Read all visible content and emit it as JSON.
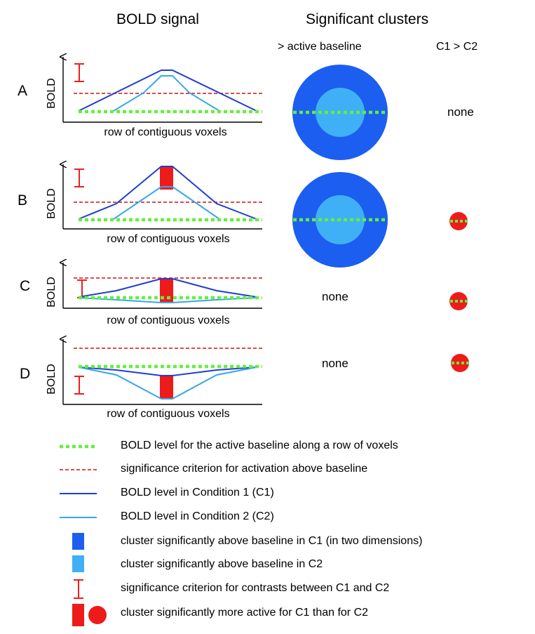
{
  "headers": {
    "bold_signal": "BOLD signal",
    "significant_clusters": "Significant clusters",
    "active_baseline": "> active baseline",
    "c1_gt_c2": "C1 > C2"
  },
  "panels": [
    {
      "label": "A",
      "ylabel": "BOLD",
      "xlabel": "row of contiguous voxels",
      "active_baseline": "",
      "c1_gt_c2": "none"
    },
    {
      "label": "B",
      "ylabel": "BOLD",
      "xlabel": "row of contiguous voxels",
      "active_baseline": "",
      "c1_gt_c2": ""
    },
    {
      "label": "C",
      "ylabel": "BOLD",
      "xlabel": "row of contiguous voxels",
      "active_baseline": "none",
      "c1_gt_c2": ""
    },
    {
      "label": "D",
      "ylabel": "BOLD",
      "xlabel": "row of contiguous voxels",
      "active_baseline": "none",
      "c1_gt_c2": ""
    }
  ],
  "legend": [
    {
      "text": "BOLD level for the active baseline along a row of voxels"
    },
    {
      "text": "significance criterion for activation above baseline"
    },
    {
      "text": "BOLD level in Condition 1 (C1)"
    },
    {
      "text": "BOLD level in Condition 2 (C2)"
    },
    {
      "text": "cluster significantly above baseline in C1 (in two dimensions)"
    },
    {
      "text": "cluster significantly above baseline in C2"
    },
    {
      "text": "significance criterion for contrasts between C1 and C2"
    },
    {
      "text": "cluster significantly more active for C1 than for C2"
    }
  ],
  "colors": {
    "c1": "#1f3fd0",
    "c2": "#3aa6ea",
    "cluster_c1": "#1c5ef0",
    "cluster_c2": "#3fb0f5",
    "baseline": "#63f03c",
    "criterion": "#d01010",
    "contrast": "#ee1b1b"
  }
}
